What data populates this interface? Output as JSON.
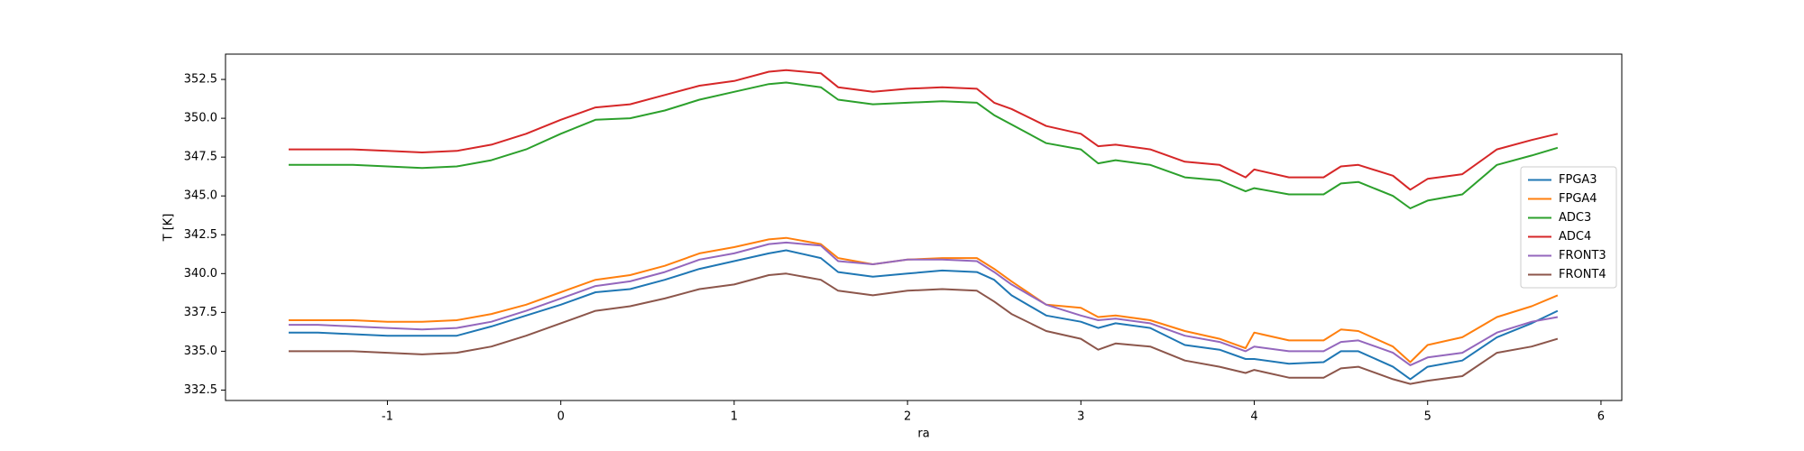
{
  "chart_data": {
    "type": "line",
    "xlabel": "ra",
    "ylabel": "T [K]",
    "x": [
      -1.57,
      -1.4,
      -1.2,
      -1.0,
      -0.8,
      -0.6,
      -0.4,
      -0.2,
      0,
      0.2,
      0.4,
      0.6,
      0.8,
      1.0,
      1.2,
      1.3,
      1.5,
      1.6,
      1.8,
      2.0,
      2.2,
      2.4,
      2.5,
      2.6,
      2.8,
      3.0,
      3.1,
      3.2,
      3.4,
      3.6,
      3.8,
      3.95,
      4.0,
      4.2,
      4.4,
      4.5,
      4.6,
      4.8,
      4.9,
      5.0,
      5.2,
      5.4,
      5.6,
      5.75
    ],
    "series": [
      {
        "name": "FPGA3",
        "color": "#1f77b4",
        "values": [
          336.2,
          336.2,
          336.1,
          336.0,
          336.0,
          336.0,
          336.6,
          337.3,
          338.0,
          338.8,
          339.0,
          339.6,
          340.3,
          340.8,
          341.3,
          341.5,
          341.0,
          340.1,
          339.8,
          340.0,
          340.2,
          340.1,
          339.6,
          338.6,
          337.3,
          336.9,
          336.5,
          336.8,
          336.5,
          335.4,
          335.1,
          334.5,
          334.5,
          334.2,
          334.3,
          335.0,
          335.0,
          334.0,
          333.2,
          334.0,
          334.4,
          335.9,
          336.8,
          337.6
        ]
      },
      {
        "name": "FPGA4",
        "color": "#ff7f0e",
        "values": [
          337.0,
          337.0,
          337.0,
          336.9,
          336.9,
          337.0,
          337.4,
          338.0,
          338.8,
          339.6,
          339.9,
          340.5,
          341.3,
          341.7,
          342.2,
          342.3,
          341.9,
          341.0,
          340.6,
          340.9,
          341.0,
          341.0,
          340.3,
          339.5,
          338.0,
          337.8,
          337.2,
          337.3,
          337.0,
          336.3,
          335.8,
          335.2,
          336.2,
          335.7,
          335.7,
          336.4,
          336.3,
          335.3,
          334.3,
          335.4,
          335.9,
          337.2,
          337.9,
          338.6
        ]
      },
      {
        "name": "ADC3",
        "color": "#2ca02c",
        "values": [
          347.0,
          347.0,
          347.0,
          346.9,
          346.8,
          346.9,
          347.3,
          348.0,
          349.0,
          349.9,
          350.0,
          350.5,
          351.2,
          351.7,
          352.2,
          352.3,
          352.0,
          351.2,
          350.9,
          351.0,
          351.1,
          351.0,
          350.2,
          349.6,
          348.4,
          348.0,
          347.1,
          347.3,
          347.0,
          346.2,
          346.0,
          345.3,
          345.5,
          345.1,
          345.1,
          345.8,
          345.9,
          345.0,
          344.2,
          344.7,
          345.1,
          347.0,
          347.6,
          348.1
        ]
      },
      {
        "name": "ADC4",
        "color": "#d62728",
        "values": [
          348.0,
          348.0,
          348.0,
          347.9,
          347.8,
          347.9,
          348.3,
          349.0,
          349.9,
          350.7,
          350.9,
          351.5,
          352.1,
          352.4,
          353.0,
          353.1,
          352.9,
          352.0,
          351.7,
          351.9,
          352.0,
          351.9,
          351.0,
          350.6,
          349.5,
          349.0,
          348.2,
          348.3,
          348.0,
          347.2,
          347.0,
          346.2,
          346.7,
          346.2,
          346.2,
          346.9,
          347.0,
          346.3,
          345.4,
          346.1,
          346.4,
          348.0,
          348.6,
          349.0
        ]
      },
      {
        "name": "FRONT3",
        "color": "#9467bd",
        "values": [
          336.7,
          336.7,
          336.6,
          336.5,
          336.4,
          336.5,
          336.9,
          337.6,
          338.4,
          339.2,
          339.5,
          340.1,
          340.9,
          341.3,
          341.9,
          342.0,
          341.8,
          340.8,
          340.6,
          340.9,
          340.9,
          340.8,
          340.1,
          339.3,
          338.0,
          337.3,
          337.0,
          337.1,
          336.8,
          336.0,
          335.6,
          335.0,
          335.3,
          335.0,
          335.0,
          335.6,
          335.7,
          334.9,
          334.1,
          334.6,
          334.9,
          336.2,
          336.9,
          337.2
        ]
      },
      {
        "name": "FRONT4",
        "color": "#8c564b",
        "values": [
          335.0,
          335.0,
          335.0,
          334.9,
          334.8,
          334.9,
          335.3,
          336.0,
          336.8,
          337.6,
          337.9,
          338.4,
          339.0,
          339.3,
          339.9,
          340.0,
          339.6,
          338.9,
          338.6,
          338.9,
          339.0,
          338.9,
          338.2,
          337.4,
          336.3,
          335.8,
          335.1,
          335.5,
          335.3,
          334.4,
          334.0,
          333.6,
          333.8,
          333.3,
          333.3,
          333.9,
          334.0,
          333.2,
          332.9,
          333.1,
          333.4,
          334.9,
          335.3,
          335.8
        ]
      }
    ],
    "xlim": [
      -1.934,
      6.12
    ],
    "xticks": [
      -1,
      0,
      1,
      2,
      3,
      4,
      5,
      6
    ],
    "ylim": [
      331.83,
      354.13
    ],
    "yticks": [
      332.5,
      {
        "value": 335,
        "label": "335.0"
      },
      337.5,
      {
        "value": 340,
        "label": "340.0"
      },
      342.5,
      {
        "value": 345,
        "label": "345.0"
      },
      347.5,
      {
        "value": 350,
        "label": "350.0"
      },
      352.5
    ],
    "legend": "center right"
  }
}
